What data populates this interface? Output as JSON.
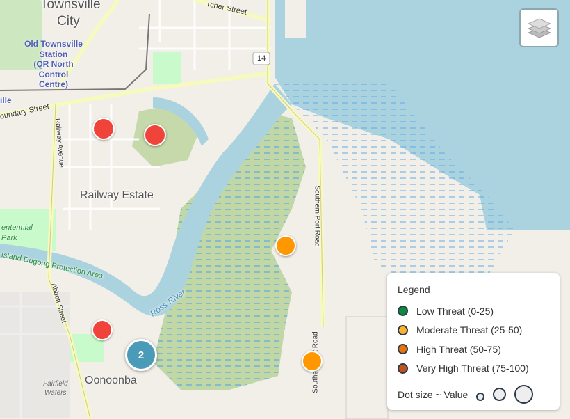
{
  "map": {
    "labels": {
      "townsville": "Townsville",
      "city": "City",
      "station": [
        "Old Townsville",
        "Station",
        "(QR North",
        "Control",
        "Centre)"
      ],
      "ille": "ille",
      "boundary_street": "oundary Street",
      "archer_street": "rcher Street",
      "railway_avenue": "Railway Avenue",
      "railway_estate": "Railway Estate",
      "centennial_park": [
        "entennial",
        "Park"
      ],
      "dugong": "Island Dugong Protection Area",
      "abbott_street": "Abbott Street",
      "ross_river": "Ross River",
      "southern_port_road": "Southern Port Road",
      "oonoonba": "Oonoonba",
      "fairfield_waters": [
        "Fairfield",
        "Waters"
      ],
      "route_shield": "14"
    }
  },
  "markers": [
    {
      "threat": "very-high",
      "color": "#f0433a"
    },
    {
      "threat": "very-high",
      "color": "#f0433a"
    },
    {
      "threat": "very-high",
      "color": "#f0433a"
    },
    {
      "threat": "moderate",
      "color": "#ff9800"
    },
    {
      "threat": "moderate",
      "color": "#ff9800"
    }
  ],
  "cluster": {
    "count": "2",
    "color": "#4a9bb7"
  },
  "layers_control": {
    "icon": "layers-icon"
  },
  "legend": {
    "title": "Legend",
    "items": [
      {
        "label": "Low Threat (0-25)",
        "color": "#0e8a3e"
      },
      {
        "label": "Moderate Threat (25-50)",
        "color": "#fbb42a"
      },
      {
        "label": "High Threat (50-75)",
        "color": "#e8740c"
      },
      {
        "label": "Very High Threat (75-100)",
        "color": "#c0521e"
      }
    ],
    "size_label": "Dot size ~ Value"
  }
}
